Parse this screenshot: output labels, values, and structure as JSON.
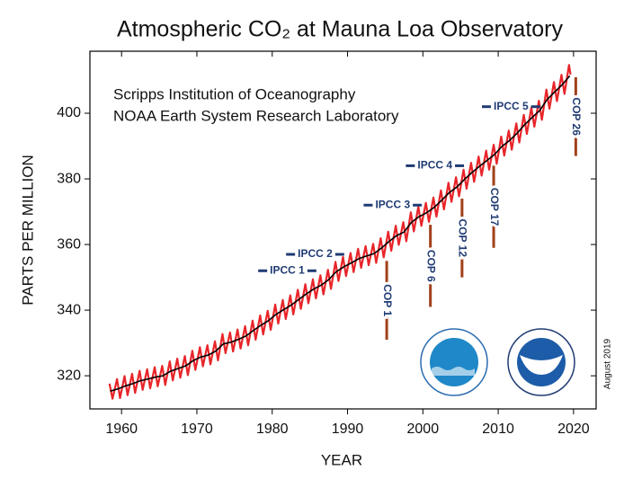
{
  "chart_data": {
    "type": "line",
    "title": "Atmospheric CO₂ at Mauna Loa Observatory",
    "subtitle": [
      "Scripps Institution of Oceanography",
      "NOAA Earth System Research Laboratory"
    ],
    "x_label": "YEAR",
    "y_label": "PARTS PER MILLION",
    "date_note": "August 2019",
    "xlim": [
      1955.8,
      2023
    ],
    "ylim": [
      309.9,
      418.9
    ],
    "xticks": [
      1960,
      1970,
      1980,
      1990,
      2000,
      2010,
      2020
    ],
    "yticks": [
      320,
      340,
      360,
      380,
      400
    ],
    "series": [
      {
        "color": "#e8252a",
        "x": [
          1958.4,
          1958.8,
          1959.4,
          1959.8,
          1960.4,
          1960.8,
          1961.4,
          1961.8,
          1962.4,
          1962.8,
          1963.4,
          1963.8,
          1964.4,
          1964.8,
          1965.4,
          1965.8,
          1966.4,
          1966.8,
          1967.4,
          1967.8,
          1968.4,
          1968.8,
          1969.4,
          1969.8,
          1970.4,
          1970.8,
          1971.4,
          1971.8,
          1972.4,
          1972.8,
          1973.4,
          1973.8,
          1974.4,
          1974.8,
          1975.4,
          1975.8,
          1976.4,
          1976.8,
          1977.4,
          1977.8,
          1978.4,
          1978.8,
          1979.4,
          1979.8,
          1980.4,
          1980.8,
          1981.4,
          1981.8,
          1982.4,
          1982.8,
          1983.4,
          1983.8,
          1984.4,
          1984.8,
          1985.4,
          1985.8,
          1986.4,
          1986.8,
          1987.4,
          1987.8,
          1988.4,
          1988.8,
          1989.4,
          1989.8,
          1990.4,
          1990.8,
          1991.4,
          1991.8,
          1992.4,
          1992.8,
          1993.4,
          1993.8,
          1994.4,
          1994.8,
          1995.4,
          1995.8,
          1996.4,
          1996.8,
          1997.4,
          1997.8,
          1998.4,
          1998.8,
          1999.4,
          1999.8,
          2000.4,
          2000.8,
          2001.4,
          2001.8,
          2002.4,
          2002.8,
          2003.4,
          2003.8,
          2004.4,
          2004.8,
          2005.4,
          2005.8,
          2006.4,
          2006.8,
          2007.4,
          2007.8,
          2008.4,
          2008.8,
          2009.4,
          2009.8,
          2010.4,
          2010.8,
          2011.4,
          2011.8,
          2012.4,
          2012.8,
          2013.4,
          2013.8,
          2014.4,
          2014.8,
          2015.4,
          2015.8,
          2016.4,
          2016.8,
          2017.4,
          2017.8,
          2018.4,
          2018.8,
          2019.4,
          2019.6
        ],
        "values": [
          317.6,
          313.0,
          319.0,
          313.2,
          319.9,
          314.1,
          320.6,
          314.8,
          321.5,
          315.7,
          322.0,
          316.2,
          322.6,
          316.8,
          323.0,
          317.2,
          324.4,
          318.6,
          325.2,
          319.4,
          326.0,
          320.2,
          327.6,
          321.8,
          328.7,
          322.9,
          329.3,
          323.5,
          330.5,
          324.7,
          332.7,
          326.9,
          333.2,
          327.4,
          334.1,
          328.3,
          335.1,
          329.3,
          336.8,
          331.0,
          338.4,
          332.6,
          339.8,
          334.0,
          341.7,
          335.9,
          343.1,
          337.3,
          344.5,
          338.7,
          346.2,
          340.4,
          347.9,
          342.1,
          349.4,
          343.6,
          350.6,
          344.8,
          352.3,
          346.5,
          354.7,
          348.9,
          356.2,
          350.4,
          357.4,
          351.6,
          358.7,
          352.9,
          359.5,
          353.7,
          360.2,
          354.4,
          361.9,
          356.1,
          363.9,
          358.1,
          365.7,
          359.9,
          366.8,
          361.0,
          369.8,
          364.0,
          371.5,
          365.7,
          372.7,
          366.9,
          374.3,
          368.5,
          376.5,
          370.7,
          378.8,
          373.0,
          380.5,
          374.7,
          382.8,
          377.0,
          384.9,
          379.1,
          386.8,
          381.0,
          388.6,
          382.8,
          390.4,
          384.6,
          392.9,
          387.1,
          394.7,
          388.9,
          396.9,
          391.1,
          399.5,
          393.7,
          401.7,
          395.9,
          403.8,
          398.0,
          407.2,
          401.4,
          409.5,
          403.7,
          411.7,
          405.9,
          414.7,
          411.8
        ]
      },
      {
        "color": "#000000",
        "x": [
          1958.5,
          1959.5,
          1960.5,
          1961.5,
          1962.5,
          1963.5,
          1964.5,
          1965.5,
          1966.5,
          1967.5,
          1968.5,
          1969.5,
          1970.5,
          1971.5,
          1972.5,
          1973.5,
          1974.5,
          1975.5,
          1976.5,
          1977.5,
          1978.5,
          1979.5,
          1980.5,
          1981.5,
          1982.5,
          1983.5,
          1984.5,
          1985.5,
          1986.5,
          1987.5,
          1988.5,
          1989.5,
          1990.5,
          1991.5,
          1992.5,
          1993.5,
          1994.5,
          1995.5,
          1996.5,
          1997.5,
          1998.5,
          1999.5,
          2000.5,
          2001.5,
          2002.5,
          2003.5,
          2004.5,
          2005.5,
          2006.5,
          2007.5,
          2008.5,
          2009.5,
          2010.5,
          2011.5,
          2012.5,
          2013.5,
          2014.5,
          2015.5,
          2016.5,
          2017.5,
          2018.5,
          2019.5
        ],
        "values": [
          315.3,
          316.0,
          316.9,
          317.6,
          318.5,
          319.0,
          319.6,
          320.0,
          321.4,
          322.2,
          323.0,
          324.6,
          325.7,
          326.3,
          327.5,
          329.7,
          330.2,
          331.1,
          332.1,
          333.8,
          335.4,
          336.8,
          338.7,
          340.1,
          341.5,
          343.2,
          344.9,
          346.4,
          347.6,
          349.3,
          351.7,
          353.2,
          354.4,
          355.7,
          356.5,
          357.2,
          358.9,
          360.9,
          362.7,
          363.8,
          366.8,
          368.5,
          369.7,
          371.3,
          373.5,
          375.8,
          377.5,
          379.8,
          381.9,
          383.8,
          385.6,
          387.4,
          389.9,
          391.7,
          393.9,
          396.5,
          398.7,
          400.8,
          404.2,
          406.5,
          408.7,
          411.4
        ]
      }
    ],
    "annotations": [
      {
        "text": "IPCC 1",
        "x": 1982,
        "y": 352
      },
      {
        "text": "IPCC 2",
        "x": 1985.7,
        "y": 357
      },
      {
        "text": "IPCC 3",
        "x": 1996,
        "y": 372
      },
      {
        "text": "IPCC 4",
        "x": 2001.6,
        "y": 384
      },
      {
        "text": "IPCC 5",
        "x": 2011.7,
        "y": 402
      },
      {
        "text": "COP 1",
        "x": 1995.2,
        "y": [
          331,
          355
        ]
      },
      {
        "text": "COP 6",
        "x": 2001,
        "y": [
          341,
          366
        ]
      },
      {
        "text": "COP 12",
        "x": 2005.2,
        "y": [
          350,
          374
        ]
      },
      {
        "text": "COP 17",
        "x": 2009.4,
        "y": [
          359,
          384
        ]
      },
      {
        "text": "COP 26",
        "x": 2020.3,
        "y": [
          387,
          411
        ]
      }
    ]
  }
}
